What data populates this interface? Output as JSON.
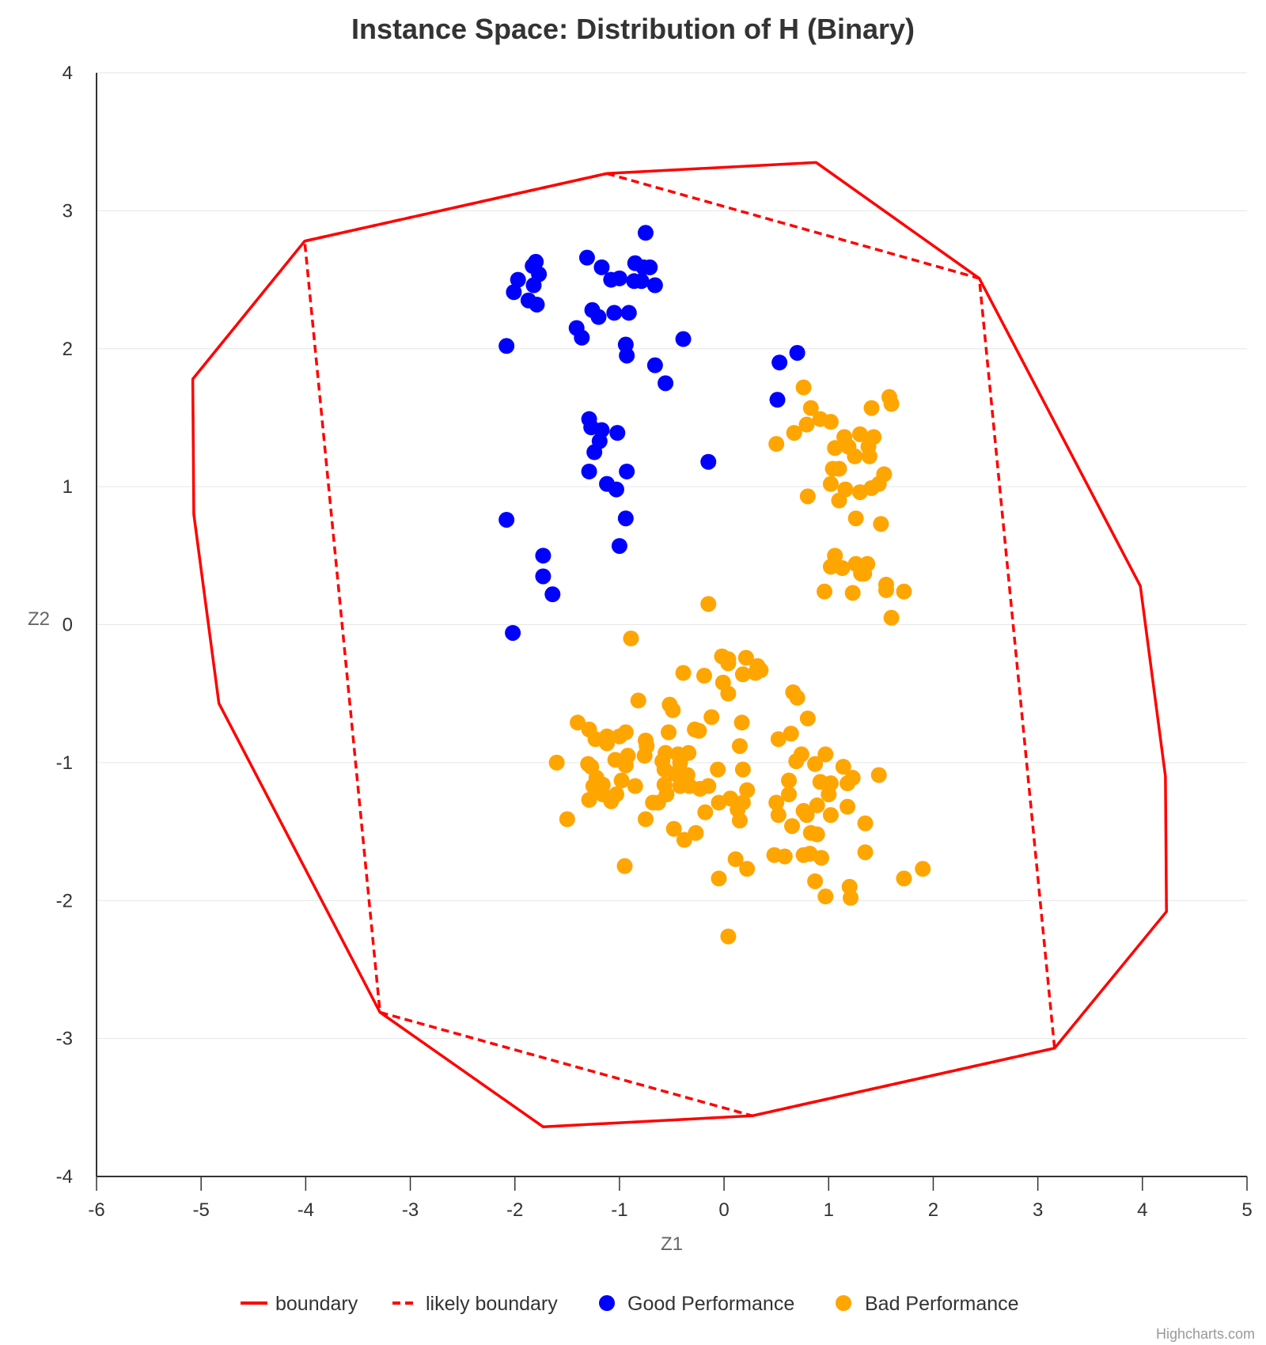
{
  "chart_data": {
    "type": "scatter",
    "title": "Instance Space: Distribution of H (Binary)",
    "xlabel": "Z1",
    "ylabel": "Z2",
    "xlim": [
      -6,
      5
    ],
    "ylim": [
      -4,
      4
    ],
    "xticks": [
      "-6",
      "-5",
      "-4",
      "-3",
      "-2",
      "-1",
      "0",
      "1",
      "2",
      "3",
      "4",
      "5"
    ],
    "yticks": [
      "4",
      "3",
      "2",
      "1",
      "0",
      "-1",
      "-2",
      "-3",
      "-4"
    ],
    "grid": true,
    "legend_placement": "bottom-center",
    "credit": "Highcharts.com",
    "colors": {
      "boundary": "#ff0000",
      "good": "#0000ff",
      "bad": "#ffa500"
    },
    "series": [
      {
        "name": "boundary",
        "kind": "line",
        "dash": false,
        "points": [
          [
            -1.12,
            3.27
          ],
          [
            0.88,
            3.35
          ],
          [
            2.44,
            2.51
          ],
          [
            3.98,
            0.28
          ],
          [
            4.22,
            -1.1
          ],
          [
            4.23,
            -2.08
          ],
          [
            3.16,
            -3.07
          ],
          [
            0.27,
            -3.56
          ],
          [
            -1.73,
            -3.64
          ],
          [
            -3.29,
            -2.81
          ],
          [
            -4.83,
            -0.57
          ],
          [
            -5.07,
            0.8
          ],
          [
            -5.08,
            1.78
          ],
          [
            -4.01,
            2.78
          ],
          [
            -1.12,
            3.27
          ]
        ]
      },
      {
        "name": "likely boundary",
        "kind": "line",
        "dash": true,
        "points": [
          [
            -1.12,
            3.27
          ],
          [
            2.44,
            2.51
          ],
          [
            3.16,
            -3.07
          ],
          [
            0.27,
            -3.56
          ],
          [
            -3.29,
            -2.81
          ],
          [
            -4.01,
            2.78
          ],
          [
            -1.12,
            3.27
          ]
        ]
      },
      {
        "name": "Good Performance",
        "kind": "scatter",
        "points": [
          [
            -0.75,
            2.84
          ],
          [
            -1.31,
            2.66
          ],
          [
            -1.17,
            2.59
          ],
          [
            -1.8,
            2.63
          ],
          [
            -1.83,
            2.6
          ],
          [
            -1.77,
            2.54
          ],
          [
            -1.97,
            2.5
          ],
          [
            -1.82,
            2.46
          ],
          [
            -2.01,
            2.41
          ],
          [
            -1.87,
            2.35
          ],
          [
            -1.79,
            2.32
          ],
          [
            -1.08,
            2.5
          ],
          [
            -1.0,
            2.51
          ],
          [
            -0.85,
            2.62
          ],
          [
            -0.71,
            2.59
          ],
          [
            -0.77,
            2.59
          ],
          [
            -0.86,
            2.49
          ],
          [
            -0.79,
            2.49
          ],
          [
            -0.66,
            2.46
          ],
          [
            -1.26,
            2.28
          ],
          [
            -1.2,
            2.23
          ],
          [
            -1.05,
            2.26
          ],
          [
            -0.91,
            2.26
          ],
          [
            -1.41,
            2.15
          ],
          [
            -1.36,
            2.08
          ],
          [
            -2.08,
            2.02
          ],
          [
            -0.94,
            2.03
          ],
          [
            -0.93,
            1.95
          ],
          [
            -0.39,
            2.07
          ],
          [
            -0.66,
            1.88
          ],
          [
            -0.56,
            1.75
          ],
          [
            0.53,
            1.9
          ],
          [
            0.7,
            1.97
          ],
          [
            0.51,
            1.63
          ],
          [
            -1.29,
            1.49
          ],
          [
            -1.27,
            1.43
          ],
          [
            -1.17,
            1.41
          ],
          [
            -1.19,
            1.33
          ],
          [
            -1.02,
            1.39
          ],
          [
            -1.24,
            1.25
          ],
          [
            -1.29,
            1.11
          ],
          [
            -0.93,
            1.11
          ],
          [
            -1.12,
            1.02
          ],
          [
            -1.03,
            0.98
          ],
          [
            -0.15,
            1.18
          ],
          [
            -2.08,
            0.76
          ],
          [
            -0.94,
            0.77
          ],
          [
            -1.0,
            0.57
          ],
          [
            -1.73,
            0.5
          ],
          [
            -1.73,
            0.35
          ],
          [
            -1.64,
            0.22
          ],
          [
            -2.02,
            -0.06
          ]
        ]
      },
      {
        "name": "Bad Performance",
        "kind": "scatter",
        "points": [
          [
            0.76,
            1.72
          ],
          [
            1.58,
            1.65
          ],
          [
            1.6,
            1.6
          ],
          [
            1.41,
            1.57
          ],
          [
            0.83,
            1.57
          ],
          [
            0.92,
            1.49
          ],
          [
            0.79,
            1.45
          ],
          [
            1.02,
            1.47
          ],
          [
            0.67,
            1.39
          ],
          [
            0.5,
            1.31
          ],
          [
            1.3,
            1.38
          ],
          [
            1.43,
            1.36
          ],
          [
            1.15,
            1.36
          ],
          [
            1.06,
            1.28
          ],
          [
            1.19,
            1.29
          ],
          [
            1.38,
            1.29
          ],
          [
            1.25,
            1.22
          ],
          [
            1.39,
            1.22
          ],
          [
            1.04,
            1.13
          ],
          [
            1.1,
            1.13
          ],
          [
            1.53,
            1.09
          ],
          [
            1.02,
            1.02
          ],
          [
            1.16,
            0.98
          ],
          [
            1.3,
            0.96
          ],
          [
            1.41,
            0.99
          ],
          [
            1.48,
            1.02
          ],
          [
            0.8,
            0.93
          ],
          [
            1.1,
            0.9
          ],
          [
            1.26,
            0.77
          ],
          [
            1.5,
            0.73
          ],
          [
            1.06,
            0.5
          ],
          [
            1.02,
            0.42
          ],
          [
            1.13,
            0.41
          ],
          [
            1.26,
            0.44
          ],
          [
            1.37,
            0.44
          ],
          [
            1.31,
            0.37
          ],
          [
            1.34,
            0.37
          ],
          [
            0.96,
            0.24
          ],
          [
            1.23,
            0.23
          ],
          [
            1.55,
            0.29
          ],
          [
            1.55,
            0.25
          ],
          [
            1.72,
            0.24
          ],
          [
            1.6,
            0.05
          ],
          [
            -0.15,
            0.15
          ],
          [
            -0.89,
            -0.1
          ],
          [
            -0.02,
            -0.23
          ],
          [
            0.04,
            -0.25
          ],
          [
            0.04,
            -0.28
          ],
          [
            0.21,
            -0.24
          ],
          [
            0.32,
            -0.3
          ],
          [
            0.35,
            -0.33
          ],
          [
            0.3,
            -0.35
          ],
          [
            0.18,
            -0.36
          ],
          [
            -0.39,
            -0.35
          ],
          [
            -0.19,
            -0.37
          ],
          [
            -0.01,
            -0.42
          ],
          [
            0.04,
            -0.5
          ],
          [
            0.66,
            -0.49
          ],
          [
            0.7,
            -0.53
          ],
          [
            -0.82,
            -0.55
          ],
          [
            -0.52,
            -0.58
          ],
          [
            -0.49,
            -0.62
          ],
          [
            -0.12,
            -0.67
          ],
          [
            0.8,
            -0.68
          ],
          [
            0.17,
            -0.71
          ],
          [
            -1.4,
            -0.71
          ],
          [
            -1.29,
            -0.76
          ],
          [
            -0.28,
            -0.76
          ],
          [
            -0.24,
            -0.77
          ],
          [
            -0.53,
            -0.78
          ],
          [
            -0.94,
            -0.78
          ],
          [
            -1.12,
            -0.81
          ],
          [
            -1.0,
            -0.81
          ],
          [
            -1.23,
            -0.83
          ],
          [
            -1.12,
            -0.86
          ],
          [
            -0.75,
            -0.84
          ],
          [
            -0.74,
            -0.88
          ],
          [
            0.64,
            -0.79
          ],
          [
            0.52,
            -0.83
          ],
          [
            0.15,
            -0.88
          ],
          [
            0.74,
            -0.94
          ],
          [
            0.97,
            -0.94
          ],
          [
            -0.56,
            -0.93
          ],
          [
            -0.44,
            -0.94
          ],
          [
            -0.34,
            -0.93
          ],
          [
            -0.76,
            -0.95
          ],
          [
            -0.92,
            -0.95
          ],
          [
            -1.04,
            -0.98
          ],
          [
            -1.6,
            -1.0
          ],
          [
            -1.3,
            -1.01
          ],
          [
            -1.27,
            -1.03
          ],
          [
            -0.94,
            -1.02
          ],
          [
            -0.59,
            -0.99
          ],
          [
            -0.42,
            -1.0
          ],
          [
            0.69,
            -0.99
          ],
          [
            0.87,
            -1.01
          ],
          [
            1.14,
            -1.03
          ],
          [
            -0.06,
            -1.05
          ],
          [
            0.18,
            -1.05
          ],
          [
            -0.57,
            -1.05
          ],
          [
            -0.47,
            -1.08
          ],
          [
            -0.35,
            -1.09
          ],
          [
            1.48,
            -1.09
          ],
          [
            1.23,
            -1.11
          ],
          [
            -1.22,
            -1.11
          ],
          [
            -0.98,
            -1.13
          ],
          [
            0.62,
            -1.13
          ],
          [
            0.92,
            -1.14
          ],
          [
            1.02,
            -1.15
          ],
          [
            1.18,
            -1.15
          ],
          [
            -1.16,
            -1.16
          ],
          [
            -1.25,
            -1.17
          ],
          [
            -0.85,
            -1.17
          ],
          [
            -0.57,
            -1.16
          ],
          [
            -0.42,
            -1.17
          ],
          [
            -0.33,
            -1.17
          ],
          [
            -0.23,
            -1.19
          ],
          [
            -0.15,
            -1.17
          ],
          [
            0.22,
            -1.2
          ],
          [
            -1.16,
            -1.23
          ],
          [
            -1.03,
            -1.23
          ],
          [
            -0.55,
            -1.23
          ],
          [
            0.62,
            -1.23
          ],
          [
            1.0,
            -1.23
          ],
          [
            -1.29,
            -1.27
          ],
          [
            -1.08,
            -1.28
          ],
          [
            0.06,
            -1.26
          ],
          [
            0.18,
            -1.29
          ],
          [
            -0.05,
            -1.29
          ],
          [
            -0.68,
            -1.29
          ],
          [
            -0.63,
            -1.29
          ],
          [
            0.5,
            -1.29
          ],
          [
            0.89,
            -1.31
          ],
          [
            1.18,
            -1.32
          ],
          [
            0.13,
            -1.34
          ],
          [
            -0.18,
            -1.36
          ],
          [
            0.52,
            -1.38
          ],
          [
            0.76,
            -1.35
          ],
          [
            0.79,
            -1.38
          ],
          [
            1.02,
            -1.38
          ],
          [
            -1.5,
            -1.41
          ],
          [
            -0.75,
            -1.41
          ],
          [
            0.15,
            -1.42
          ],
          [
            1.35,
            -1.44
          ],
          [
            0.65,
            -1.46
          ],
          [
            -0.48,
            -1.48
          ],
          [
            -0.27,
            -1.51
          ],
          [
            -0.38,
            -1.56
          ],
          [
            0.83,
            -1.51
          ],
          [
            0.89,
            -1.52
          ],
          [
            1.35,
            -1.65
          ],
          [
            0.48,
            -1.67
          ],
          [
            0.58,
            -1.68
          ],
          [
            0.76,
            -1.67
          ],
          [
            0.82,
            -1.66
          ],
          [
            0.93,
            -1.69
          ],
          [
            0.11,
            -1.7
          ],
          [
            0.22,
            -1.77
          ],
          [
            -0.95,
            -1.75
          ],
          [
            1.9,
            -1.77
          ],
          [
            1.72,
            -1.84
          ],
          [
            -0.05,
            -1.84
          ],
          [
            0.87,
            -1.86
          ],
          [
            1.2,
            -1.9
          ],
          [
            0.97,
            -1.97
          ],
          [
            1.21,
            -1.98
          ],
          [
            0.04,
            -2.26
          ]
        ]
      }
    ]
  }
}
